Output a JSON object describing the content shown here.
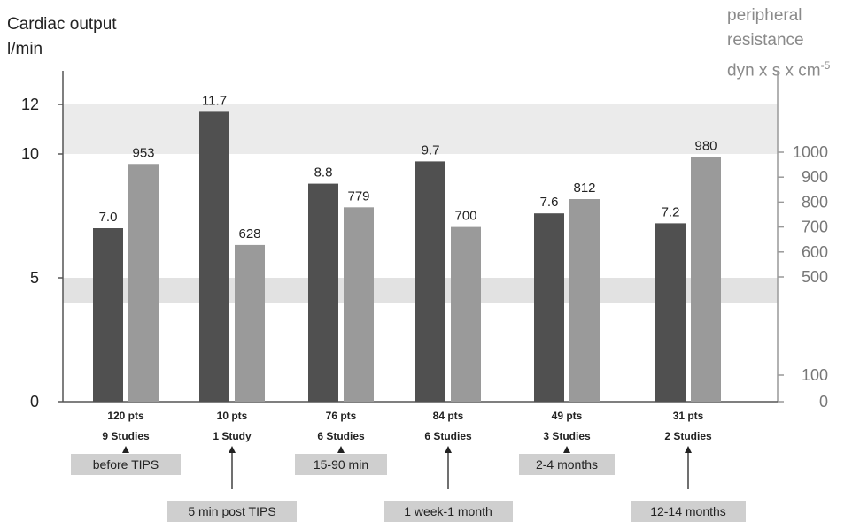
{
  "chart_data": {
    "type": "bar",
    "title": "",
    "y_left_label_line1": "Cardiac output",
    "y_left_label_line2": "l/min",
    "y_right_label_line1": "peripheral",
    "y_right_label_line2": "resistance",
    "y_right_label_line3": "dyn x s x cm",
    "y_right_label_exp": "-5",
    "ylim_left": [
      0,
      12
    ],
    "left_ticks": [
      "0",
      "5",
      "10",
      "12"
    ],
    "right_ticks": [
      "0",
      "100",
      "500",
      "600",
      "700",
      "800",
      "900",
      "1000"
    ],
    "series": [
      {
        "name": "",
        "color": "#505050",
        "values": [
          7.0,
          11.7,
          8.8,
          9.7,
          7.6,
          7.2
        ]
      },
      {
        "name": "",
        "color": "#9a9a9a",
        "values": [
          953,
          628,
          779,
          700,
          812,
          980
        ]
      }
    ],
    "value_labels_co": [
      "7.0",
      "11.7",
      "8.8",
      "9.7",
      "7.6",
      "7.2"
    ],
    "value_labels_pr": [
      "953",
      "628",
      "779",
      "700",
      "812",
      "980"
    ],
    "groups": [
      {
        "pts": "120 pts",
        "studies": "9 Studies",
        "time": "before TIPS"
      },
      {
        "pts": "10 pts",
        "studies": "1 Study",
        "time": "5 min post TIPS"
      },
      {
        "pts": "76 pts",
        "studies": "6 Studies",
        "time": "15-90 min"
      },
      {
        "pts": "84 pts",
        "studies": "6 Studies",
        "time": "1 week-1 month"
      },
      {
        "pts": "49 pts",
        "studies": "3 Studies",
        "time": "2-4 months"
      },
      {
        "pts": "31 pts",
        "studies": "2 Studies",
        "time": "12-14 months"
      }
    ],
    "reference_bands_cardiac_output": [
      [
        10,
        12
      ],
      [
        4,
        5
      ]
    ],
    "grid": false
  }
}
